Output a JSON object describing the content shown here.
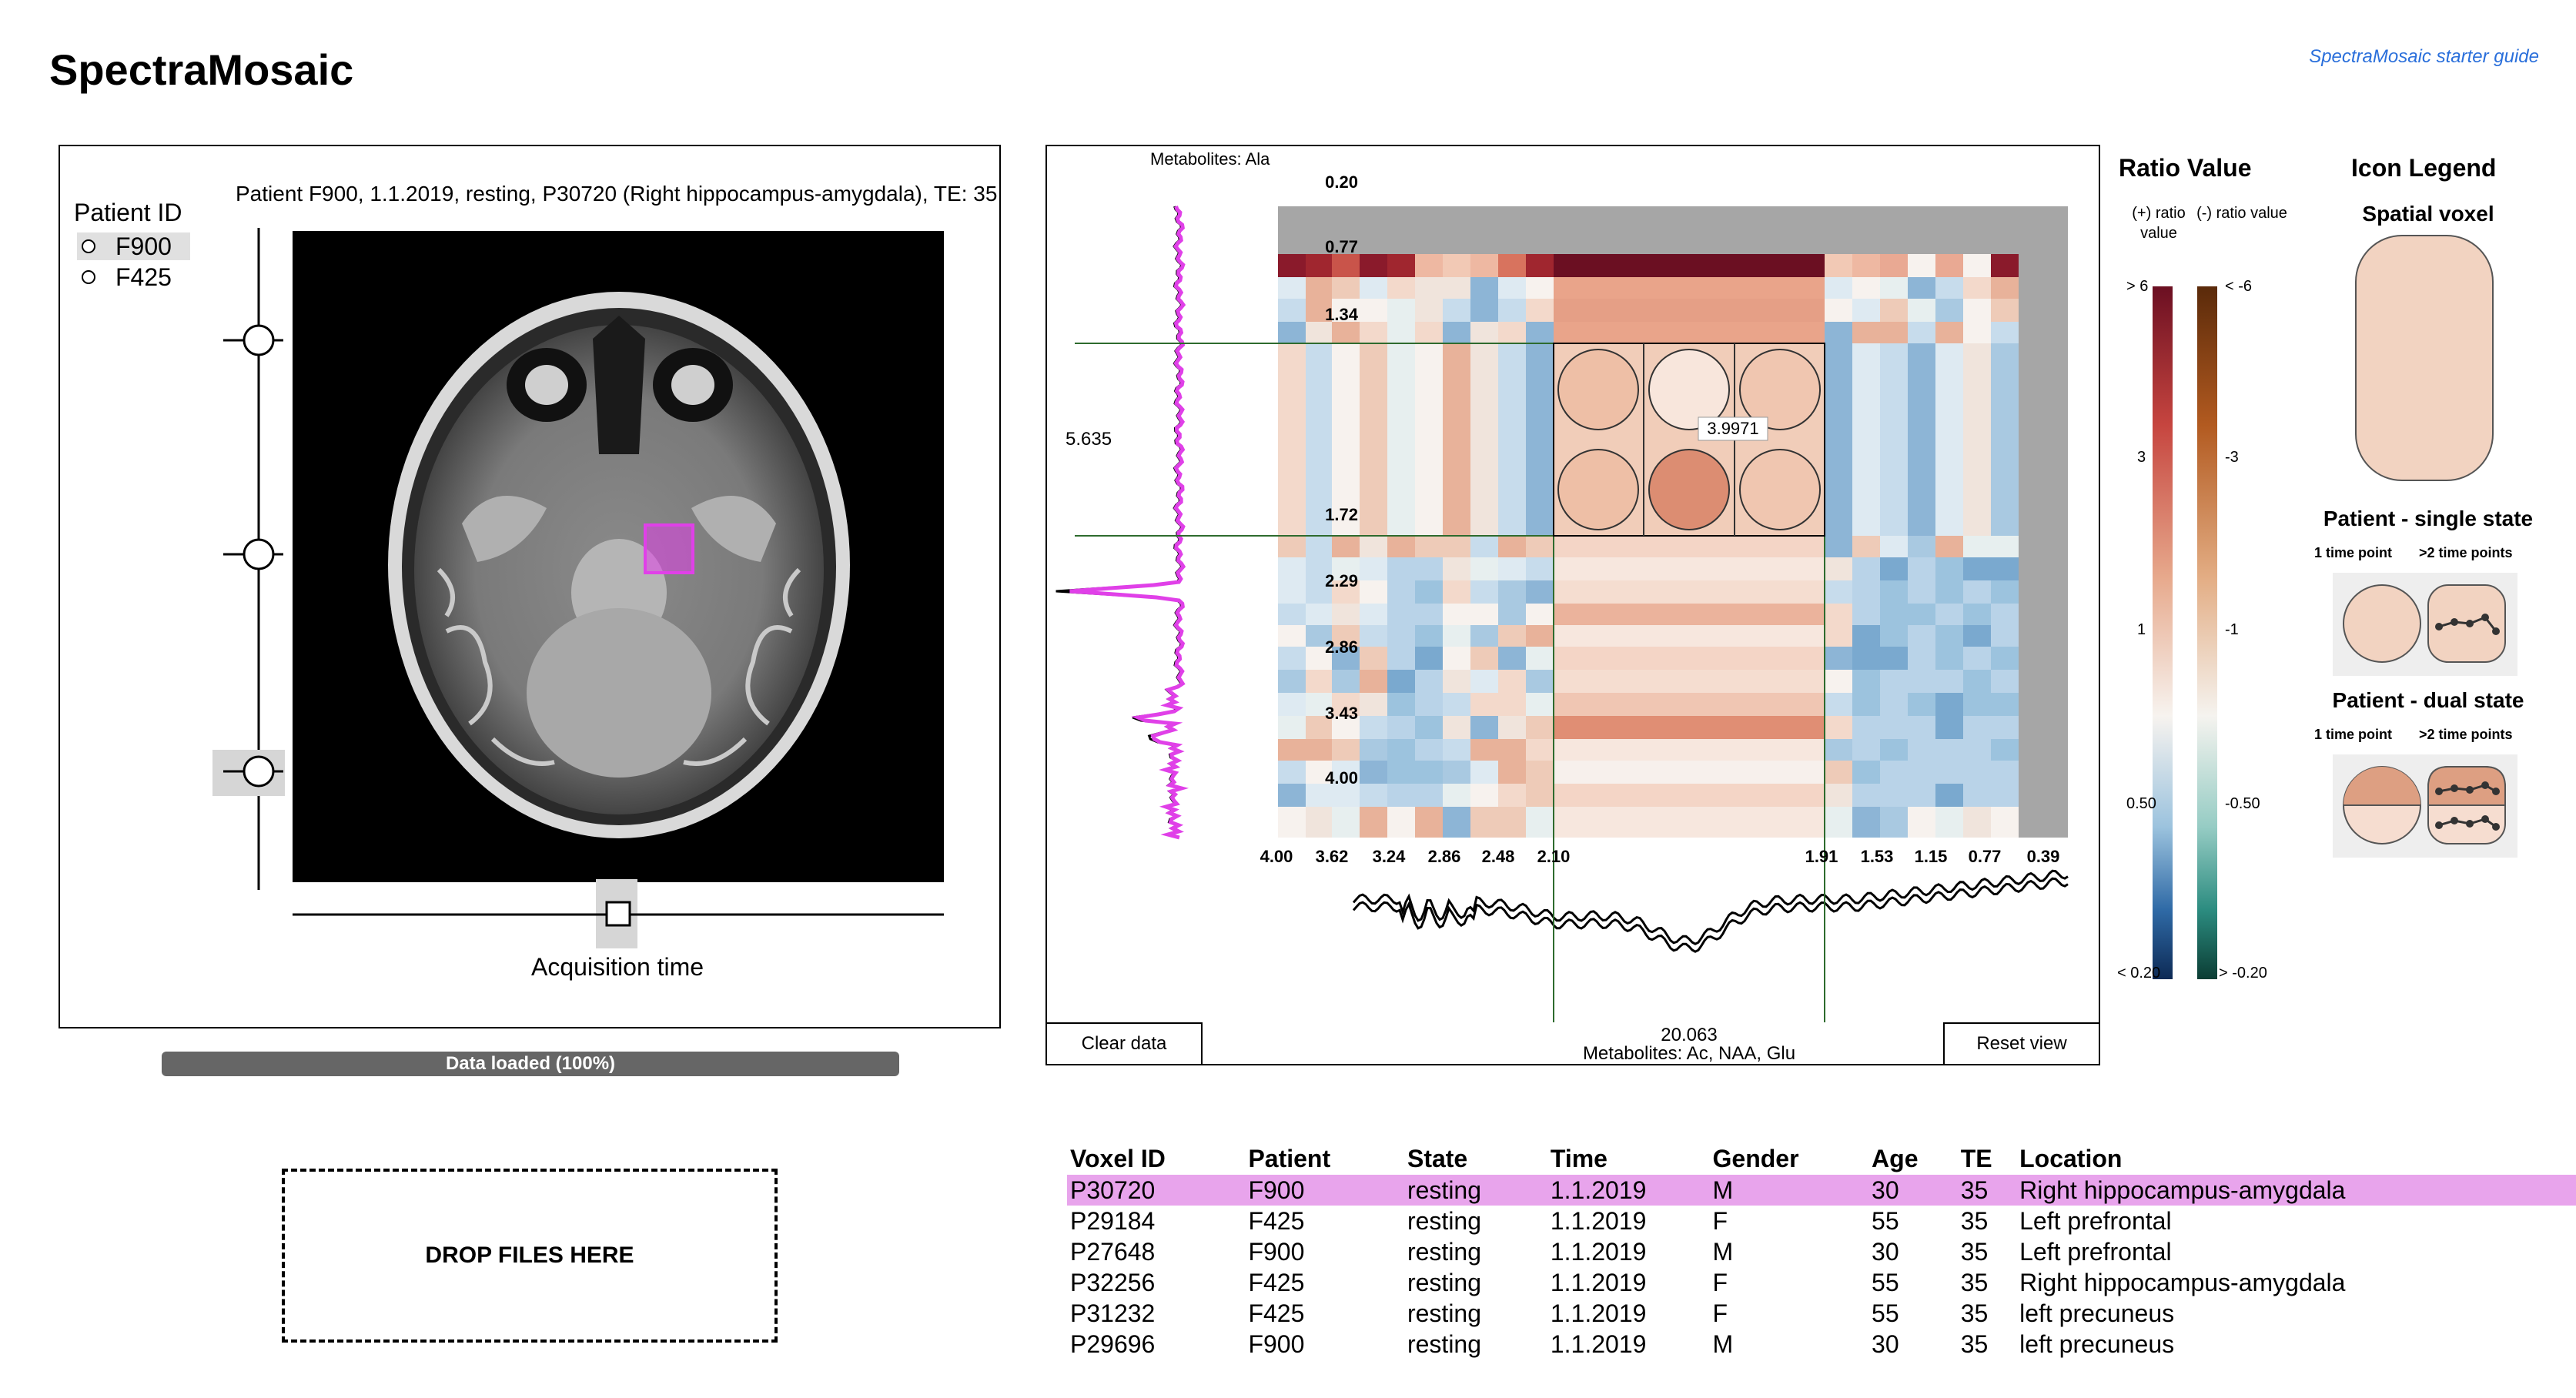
{
  "app": {
    "title": "SpectraMosaic",
    "guide_link": "SpectraMosaic starter guide"
  },
  "patients": {
    "heading": "Patient ID",
    "options": [
      {
        "id": "F900",
        "selected": true
      },
      {
        "id": "F425",
        "selected": false
      }
    ]
  },
  "scan": {
    "title": "Patient F900, 1.1.2019, resting, P30720 (Right hippocampus-amygdala), TE: 35",
    "time_axis_label": "Acquisition time"
  },
  "status": {
    "progress_label": "Data loaded (100%)",
    "progress": 1.0
  },
  "drop_zone": {
    "label": "DROP FILES HERE"
  },
  "heatmap": {
    "top_label": "Metabolites: Ala",
    "bottom_label": "Metabolites: Ac, NAA, Glu",
    "y_ticks": [
      "0.20",
      "0.77",
      "1.34",
      "1.72",
      "2.29",
      "2.86",
      "3.43",
      "4.00"
    ],
    "x_ticks": [
      "4.00",
      "3.62",
      "3.24",
      "2.86",
      "2.48",
      "2.10",
      "1.91",
      "1.53",
      "1.15",
      "0.77",
      "0.39"
    ],
    "left_readout": "5.635",
    "bottom_readout": "20.063",
    "cell_readout": "3.9971",
    "clear_button": "Clear data",
    "reset_button": "Reset view"
  },
  "ratio_scale": {
    "title": "Ratio Value",
    "positive_label": "(+) ratio value",
    "negative_label": "(-) ratio value",
    "positive_ticks": [
      "> 6",
      "3",
      "1",
      "0.50",
      "< 0.20"
    ],
    "negative_ticks": [
      "< -6",
      "-3",
      "-1",
      "-0.50",
      "> -0.20"
    ]
  },
  "icon_legend": {
    "title": "Icon Legend",
    "spatial_voxel": "Spatial voxel",
    "single_state": "Patient - single state",
    "dual_state": "Patient - dual state",
    "one_time_point": "1 time point",
    "many_time_points": ">2 time points"
  },
  "table": {
    "headers": [
      "Voxel ID",
      "Patient",
      "State",
      "Time",
      "Gender",
      "Age",
      "TE",
      "Location"
    ],
    "rows": [
      [
        "P30720",
        "F900",
        "resting",
        "1.1.2019",
        "M",
        "30",
        "35",
        "Right hippocampus-amygdala"
      ],
      [
        "P29184",
        "F425",
        "resting",
        "1.1.2019",
        "F",
        "55",
        "35",
        "Left prefrontal"
      ],
      [
        "P27648",
        "F900",
        "resting",
        "1.1.2019",
        "M",
        "30",
        "35",
        "Left prefrontal"
      ],
      [
        "P32256",
        "F425",
        "resting",
        "1.1.2019",
        "F",
        "55",
        "35",
        "Right hippocampus-amygdala"
      ],
      [
        "P31232",
        "F425",
        "resting",
        "1.1.2019",
        "F",
        "55",
        "35",
        "left precuneus"
      ],
      [
        "P29696",
        "F900",
        "resting",
        "1.1.2019",
        "M",
        "30",
        "35",
        "left precuneus"
      ]
    ],
    "selected_row": 0
  },
  "colors": {
    "accent_magenta": "#e040e8",
    "selected_row": "#e8a4ec",
    "pos_scale": [
      "#6b0f22",
      "#c6453f",
      "#e7a98c",
      "#f7f3ef",
      "#9cc3de",
      "#2f6aa6",
      "#0d2a55"
    ],
    "neg_scale": [
      "#5a2a0a",
      "#b25a20",
      "#e3ad84",
      "#f5f3ef",
      "#96ccc4",
      "#2c8c80",
      "#0b3d34"
    ]
  }
}
